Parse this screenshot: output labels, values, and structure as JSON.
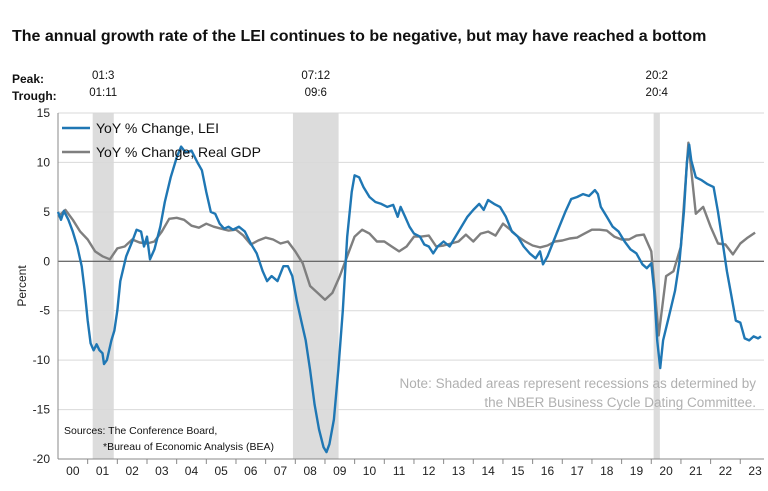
{
  "title": "The annual growth rate of the LEI continues to be negative, but may have reached a bottom",
  "peak_label": "Peak:",
  "trough_label": "Trough:",
  "recessions": [
    {
      "peak": "01:3",
      "trough": "01:11",
      "start": 2001.17,
      "end": 2001.88
    },
    {
      "peak": "07:12",
      "trough": "09:6",
      "start": 2007.92,
      "end": 2009.46
    },
    {
      "peak": "20:2",
      "trough": "20:4",
      "start": 2020.08,
      "end": 2020.29
    }
  ],
  "note_lines": [
    "Note: Shaded areas represent recessions as determined by",
    "the NBER Business Cycle Dating Committee."
  ],
  "source_lines": [
    "Sources: The Conference Board,",
    "*Bureau of Economic Analysis (BEA)"
  ],
  "colors": {
    "lei": "#1f77b4",
    "gdp": "#7f7f7f",
    "recession": "#dcdcdc"
  },
  "chart_data": {
    "type": "line",
    "title": "The annual growth rate of the LEI continues to be negative, but may have reached a bottom",
    "xlabel": "",
    "ylabel": "Percent",
    "xlim": [
      2000.0,
      2023.8
    ],
    "ylim": [
      -20,
      15
    ],
    "yticks": [
      15,
      10,
      5,
      0,
      -5,
      -10,
      -15,
      -20
    ],
    "xticks": [
      {
        "label": "00",
        "x": 2000.5
      },
      {
        "label": "01",
        "x": 2001.5
      },
      {
        "label": "02",
        "x": 2002.5
      },
      {
        "label": "03",
        "x": 2003.5
      },
      {
        "label": "04",
        "x": 2004.5
      },
      {
        "label": "05",
        "x": 2005.5
      },
      {
        "label": "06",
        "x": 2006.5
      },
      {
        "label": "07",
        "x": 2007.5
      },
      {
        "label": "08",
        "x": 2008.5
      },
      {
        "label": "09",
        "x": 2009.5
      },
      {
        "label": "10",
        "x": 2010.5
      },
      {
        "label": "11",
        "x": 2011.5
      },
      {
        "label": "12",
        "x": 2012.5
      },
      {
        "label": "13",
        "x": 2013.5
      },
      {
        "label": "14",
        "x": 2014.5
      },
      {
        "label": "15",
        "x": 2015.5
      },
      {
        "label": "16",
        "x": 2016.5
      },
      {
        "label": "17",
        "x": 2017.5
      },
      {
        "label": "18",
        "x": 2018.5
      },
      {
        "label": "19",
        "x": 2019.5
      },
      {
        "label": "20",
        "x": 2020.5
      },
      {
        "label": "21",
        "x": 2021.5
      },
      {
        "label": "22",
        "x": 2022.5
      },
      {
        "label": "23",
        "x": 2023.5
      }
    ],
    "legend_position": "top-left",
    "grid": true,
    "series": [
      {
        "name": "YoY % Change, LEI",
        "color": "#1f77b4",
        "points": [
          [
            2000.0,
            5.0
          ],
          [
            2000.1,
            4.2
          ],
          [
            2000.2,
            5.1
          ],
          [
            2000.35,
            4.2
          ],
          [
            2000.5,
            3.0
          ],
          [
            2000.65,
            1.5
          ],
          [
            2000.8,
            -0.5
          ],
          [
            2000.9,
            -3.0
          ],
          [
            2001.0,
            -6.0
          ],
          [
            2001.1,
            -8.3
          ],
          [
            2001.2,
            -9.0
          ],
          [
            2001.3,
            -8.4
          ],
          [
            2001.4,
            -9.0
          ],
          [
            2001.5,
            -9.3
          ],
          [
            2001.55,
            -10.4
          ],
          [
            2001.65,
            -10.0
          ],
          [
            2001.8,
            -8.0
          ],
          [
            2001.9,
            -7.0
          ],
          [
            2002.0,
            -5.0
          ],
          [
            2002.1,
            -2.0
          ],
          [
            2002.3,
            0.5
          ],
          [
            2002.5,
            2.0
          ],
          [
            2002.65,
            3.2
          ],
          [
            2002.8,
            3.0
          ],
          [
            2002.9,
            1.5
          ],
          [
            2003.0,
            2.5
          ],
          [
            2003.1,
            0.2
          ],
          [
            2003.25,
            1.2
          ],
          [
            2003.45,
            3.5
          ],
          [
            2003.6,
            6.0
          ],
          [
            2003.8,
            8.5
          ],
          [
            2004.0,
            10.5
          ],
          [
            2004.15,
            11.6
          ],
          [
            2004.3,
            11.0
          ],
          [
            2004.5,
            11.2
          ],
          [
            2004.7,
            10.0
          ],
          [
            2004.85,
            9.2
          ],
          [
            2005.0,
            7.0
          ],
          [
            2005.15,
            5.0
          ],
          [
            2005.3,
            4.8
          ],
          [
            2005.45,
            3.8
          ],
          [
            2005.6,
            3.3
          ],
          [
            2005.75,
            3.5
          ],
          [
            2005.9,
            3.2
          ],
          [
            2006.1,
            3.5
          ],
          [
            2006.3,
            3.0
          ],
          [
            2006.5,
            1.8
          ],
          [
            2006.7,
            0.8
          ],
          [
            2006.9,
            -1.0
          ],
          [
            2007.05,
            -2.0
          ],
          [
            2007.2,
            -1.5
          ],
          [
            2007.4,
            -2.0
          ],
          [
            2007.6,
            -0.5
          ],
          [
            2007.75,
            -0.5
          ],
          [
            2007.9,
            -1.5
          ],
          [
            2008.05,
            -4.0
          ],
          [
            2008.2,
            -6.0
          ],
          [
            2008.35,
            -8.0
          ],
          [
            2008.5,
            -11.0
          ],
          [
            2008.65,
            -14.5
          ],
          [
            2008.8,
            -17.0
          ],
          [
            2008.95,
            -18.8
          ],
          [
            2009.05,
            -19.3
          ],
          [
            2009.15,
            -18.5
          ],
          [
            2009.3,
            -16.0
          ],
          [
            2009.45,
            -11.0
          ],
          [
            2009.6,
            -5.0
          ],
          [
            2009.75,
            2.5
          ],
          [
            2009.9,
            7.0
          ],
          [
            2010.0,
            8.7
          ],
          [
            2010.15,
            8.5
          ],
          [
            2010.3,
            7.5
          ],
          [
            2010.5,
            6.5
          ],
          [
            2010.7,
            6.0
          ],
          [
            2010.9,
            5.8
          ],
          [
            2011.1,
            5.5
          ],
          [
            2011.3,
            5.7
          ],
          [
            2011.45,
            4.5
          ],
          [
            2011.55,
            5.5
          ],
          [
            2011.7,
            4.5
          ],
          [
            2011.85,
            3.5
          ],
          [
            2012.0,
            2.8
          ],
          [
            2012.2,
            2.5
          ],
          [
            2012.35,
            1.7
          ],
          [
            2012.5,
            1.5
          ],
          [
            2012.65,
            0.8
          ],
          [
            2012.8,
            1.5
          ],
          [
            2013.0,
            2.0
          ],
          [
            2013.2,
            1.5
          ],
          [
            2013.4,
            2.5
          ],
          [
            2013.6,
            3.5
          ],
          [
            2013.8,
            4.5
          ],
          [
            2014.0,
            5.2
          ],
          [
            2014.2,
            5.8
          ],
          [
            2014.35,
            5.2
          ],
          [
            2014.5,
            6.2
          ],
          [
            2014.7,
            5.8
          ],
          [
            2014.9,
            5.5
          ],
          [
            2015.1,
            4.5
          ],
          [
            2015.3,
            3.0
          ],
          [
            2015.5,
            2.5
          ],
          [
            2015.7,
            1.5
          ],
          [
            2015.9,
            0.8
          ],
          [
            2016.1,
            0.3
          ],
          [
            2016.25,
            1.0
          ],
          [
            2016.35,
            -0.3
          ],
          [
            2016.5,
            0.5
          ],
          [
            2016.7,
            2.0
          ],
          [
            2016.9,
            3.5
          ],
          [
            2017.1,
            5.0
          ],
          [
            2017.3,
            6.3
          ],
          [
            2017.5,
            6.5
          ],
          [
            2017.7,
            6.8
          ],
          [
            2017.9,
            6.6
          ],
          [
            2018.1,
            7.2
          ],
          [
            2018.2,
            6.8
          ],
          [
            2018.3,
            5.5
          ],
          [
            2018.5,
            4.5
          ],
          [
            2018.7,
            3.5
          ],
          [
            2018.9,
            3.0
          ],
          [
            2019.1,
            2.0
          ],
          [
            2019.3,
            1.2
          ],
          [
            2019.5,
            0.8
          ],
          [
            2019.7,
            -0.3
          ],
          [
            2019.85,
            -0.7
          ],
          [
            2020.0,
            -0.2
          ],
          [
            2020.1,
            -3.0
          ],
          [
            2020.2,
            -8.0
          ],
          [
            2020.3,
            -10.8
          ],
          [
            2020.4,
            -8.0
          ],
          [
            2020.6,
            -5.5
          ],
          [
            2020.8,
            -3.0
          ],
          [
            2020.95,
            0.0
          ],
          [
            2021.1,
            5.0
          ],
          [
            2021.2,
            10.0
          ],
          [
            2021.28,
            11.8
          ],
          [
            2021.35,
            10.2
          ],
          [
            2021.5,
            8.5
          ],
          [
            2021.7,
            8.2
          ],
          [
            2021.9,
            7.8
          ],
          [
            2022.1,
            7.5
          ],
          [
            2022.25,
            5.0
          ],
          [
            2022.4,
            2.0
          ],
          [
            2022.55,
            -1.0
          ],
          [
            2022.7,
            -3.5
          ],
          [
            2022.85,
            -6.0
          ],
          [
            2023.0,
            -6.2
          ],
          [
            2023.15,
            -7.8
          ],
          [
            2023.3,
            -8.0
          ],
          [
            2023.45,
            -7.6
          ],
          [
            2023.6,
            -7.8
          ],
          [
            2023.7,
            -7.6
          ]
        ]
      },
      {
        "name": "YoY % Change, Real GDP",
        "color": "#7f7f7f",
        "points": [
          [
            2000.0,
            4.5
          ],
          [
            2000.25,
            5.2
          ],
          [
            2000.5,
            4.2
          ],
          [
            2000.75,
            3.0
          ],
          [
            2001.0,
            2.2
          ],
          [
            2001.25,
            1.0
          ],
          [
            2001.5,
            0.5
          ],
          [
            2001.75,
            0.2
          ],
          [
            2002.0,
            1.3
          ],
          [
            2002.25,
            1.5
          ],
          [
            2002.5,
            2.2
          ],
          [
            2002.75,
            1.9
          ],
          [
            2003.0,
            1.8
          ],
          [
            2003.25,
            2.0
          ],
          [
            2003.5,
            3.0
          ],
          [
            2003.75,
            4.3
          ],
          [
            2004.0,
            4.4
          ],
          [
            2004.25,
            4.2
          ],
          [
            2004.5,
            3.6
          ],
          [
            2004.75,
            3.4
          ],
          [
            2005.0,
            3.8
          ],
          [
            2005.25,
            3.5
          ],
          [
            2005.5,
            3.3
          ],
          [
            2005.75,
            3.1
          ],
          [
            2006.0,
            3.2
          ],
          [
            2006.25,
            2.6
          ],
          [
            2006.5,
            1.7
          ],
          [
            2006.75,
            2.1
          ],
          [
            2007.0,
            2.4
          ],
          [
            2007.25,
            2.2
          ],
          [
            2007.5,
            1.8
          ],
          [
            2007.75,
            2.0
          ],
          [
            2008.0,
            1.0
          ],
          [
            2008.25,
            -0.2
          ],
          [
            2008.5,
            -2.5
          ],
          [
            2008.75,
            -3.2
          ],
          [
            2009.0,
            -3.9
          ],
          [
            2009.25,
            -3.2
          ],
          [
            2009.5,
            -1.5
          ],
          [
            2009.75,
            0.5
          ],
          [
            2010.0,
            2.5
          ],
          [
            2010.25,
            3.2
          ],
          [
            2010.5,
            2.8
          ],
          [
            2010.75,
            2.0
          ],
          [
            2011.0,
            2.0
          ],
          [
            2011.25,
            1.5
          ],
          [
            2011.5,
            1.0
          ],
          [
            2011.75,
            1.5
          ],
          [
            2012.0,
            2.5
          ],
          [
            2012.25,
            2.5
          ],
          [
            2012.5,
            2.6
          ],
          [
            2012.75,
            1.5
          ],
          [
            2013.0,
            1.6
          ],
          [
            2013.25,
            1.8
          ],
          [
            2013.5,
            2.0
          ],
          [
            2013.75,
            2.7
          ],
          [
            2014.0,
            2.0
          ],
          [
            2014.25,
            2.8
          ],
          [
            2014.5,
            3.0
          ],
          [
            2014.75,
            2.6
          ],
          [
            2015.0,
            3.8
          ],
          [
            2015.25,
            3.2
          ],
          [
            2015.5,
            2.5
          ],
          [
            2015.75,
            2.0
          ],
          [
            2016.0,
            1.6
          ],
          [
            2016.25,
            1.4
          ],
          [
            2016.5,
            1.6
          ],
          [
            2016.75,
            2.0
          ],
          [
            2017.0,
            2.1
          ],
          [
            2017.25,
            2.3
          ],
          [
            2017.5,
            2.4
          ],
          [
            2017.75,
            2.8
          ],
          [
            2018.0,
            3.2
          ],
          [
            2018.25,
            3.2
          ],
          [
            2018.5,
            3.1
          ],
          [
            2018.75,
            2.5
          ],
          [
            2019.0,
            2.2
          ],
          [
            2019.25,
            2.2
          ],
          [
            2019.5,
            2.6
          ],
          [
            2019.75,
            2.7
          ],
          [
            2020.0,
            1.0
          ],
          [
            2020.25,
            -7.5
          ],
          [
            2020.5,
            -1.5
          ],
          [
            2020.75,
            -1.0
          ],
          [
            2021.0,
            1.5
          ],
          [
            2021.25,
            12.0
          ],
          [
            2021.5,
            4.8
          ],
          [
            2021.75,
            5.5
          ],
          [
            2022.0,
            3.5
          ],
          [
            2022.25,
            1.8
          ],
          [
            2022.5,
            1.7
          ],
          [
            2022.75,
            0.7
          ],
          [
            2023.0,
            1.8
          ],
          [
            2023.25,
            2.4
          ],
          [
            2023.5,
            2.9
          ]
        ]
      }
    ]
  }
}
